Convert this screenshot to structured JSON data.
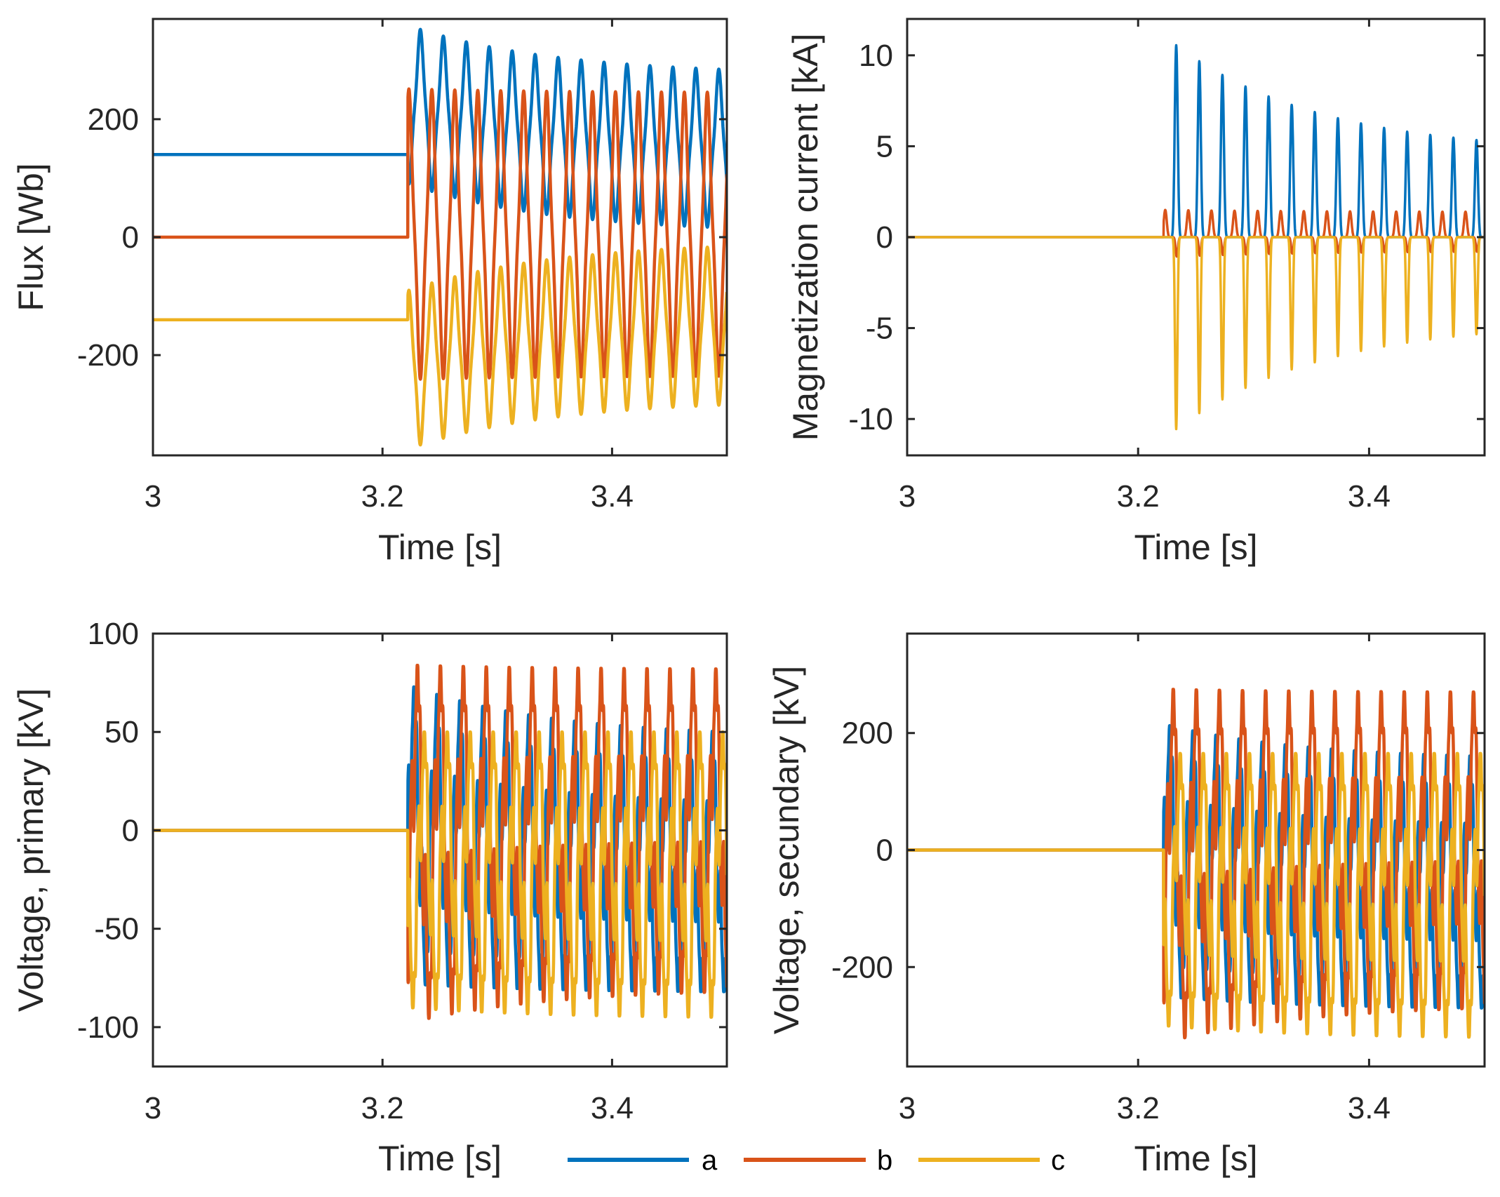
{
  "legend": {
    "placement": "bottom-center",
    "entries": [
      {
        "label": "a",
        "color": "#0072BD"
      },
      {
        "label": "b",
        "color": "#D95319"
      },
      {
        "label": "c",
        "color": "#EDB120"
      }
    ]
  },
  "chart_data": [
    {
      "type": "line",
      "xlabel": "Time [s]",
      "ylabel": "Flux [Wb]",
      "xlim": [
        3,
        3.5
      ],
      "ylim": [
        -370,
        370
      ],
      "xticks": [
        "3",
        "3.2",
        "3.4"
      ],
      "xtick_values": [
        3,
        3.2,
        3.4
      ],
      "yticks": [
        "-200",
        "0",
        "200"
      ],
      "ytick_values": [
        -200,
        0,
        200
      ],
      "grid": false,
      "event_time_s": 3.222,
      "frequency_hz": 50,
      "series": [
        {
          "name": "a",
          "color": "#0072BD",
          "pre_event_value": 140,
          "first_peak_time_s": 3.233,
          "peaks_first_last": [
            345,
            270
          ],
          "troughs_first_last": [
            105,
            30
          ]
        },
        {
          "name": "b",
          "color": "#D95319",
          "pre_event_value": 0,
          "first_peak_time_s": 3.243,
          "peaks_first_last": [
            225,
            220
          ],
          "troughs_first_last": [
            -215,
            -210
          ]
        },
        {
          "name": "c",
          "color": "#EDB120",
          "pre_event_value": -140,
          "first_peak_time_s": 3.243,
          "peaks_first_last": [
            -105,
            -30
          ],
          "troughs_first_last": [
            -345,
            -270
          ]
        }
      ]
    },
    {
      "type": "line",
      "xlabel": "Time [s]",
      "ylabel": "Magnetization current [kA]",
      "xlim": [
        3,
        3.5
      ],
      "ylim": [
        -12,
        12
      ],
      "xticks": [
        "3",
        "3.2",
        "3.4"
      ],
      "xtick_values": [
        3,
        3.2,
        3.4
      ],
      "yticks": [
        "-10",
        "-5",
        "0",
        "5",
        "10"
      ],
      "ytick_values": [
        -10,
        -5,
        0,
        5,
        10
      ],
      "grid": false,
      "event_time_s": 3.222,
      "frequency_hz": 50,
      "series": [
        {
          "name": "a",
          "color": "#0072BD",
          "pre_event_value": 0,
          "first_peak_time_s": 3.233,
          "peaks_first_last": [
            11.1,
            5.3
          ],
          "troughs_first_last": [
            0,
            0
          ]
        },
        {
          "name": "b",
          "color": "#D95319",
          "pre_event_value": 0,
          "first_peak_time_s": 3.2435,
          "peaks_first_last": [
            1.5,
            1.4
          ],
          "troughs_first_last": [
            -1.1,
            -0.8
          ]
        },
        {
          "name": "c",
          "color": "#EDB120",
          "pre_event_value": 0,
          "first_peak_time_s": 3.243,
          "peaks_first_last": [
            0,
            0
          ],
          "troughs_first_last": [
            -11.1,
            -5.3
          ]
        }
      ]
    },
    {
      "type": "line",
      "xlabel": "Time [s]",
      "ylabel": "Voltage, primary [kV]",
      "xlim": [
        3,
        3.5
      ],
      "ylim": [
        -120,
        100
      ],
      "xticks": [
        "3",
        "3.2",
        "3.4"
      ],
      "xtick_values": [
        3,
        3.2,
        3.4
      ],
      "yticks": [
        "-100",
        "-50",
        "0",
        "50",
        "100"
      ],
      "ytick_values": [
        -100,
        -50,
        0,
        50,
        100
      ],
      "grid": false,
      "event_time_s": 3.222,
      "frequency_hz": 50,
      "series": [
        {
          "name": "a",
          "color": "#0072BD",
          "pre_event_value": 0,
          "first_peak_time_s": 3.227,
          "peaks_first_last": [
            74,
            50
          ],
          "troughs_first_last": [
            -78,
            -82
          ]
        },
        {
          "name": "b",
          "color": "#D95319",
          "pre_event_value": 0,
          "first_peak_time_s": 3.23,
          "peaks_first_last": [
            84,
            82
          ],
          "troughs_first_last": [
            -98,
            -82
          ]
        },
        {
          "name": "c",
          "color": "#EDB120",
          "pre_event_value": 0,
          "first_peak_time_s": 3.236,
          "peaks_first_last": [
            50,
            50
          ],
          "troughs_first_last": [
            -90,
            -95
          ]
        }
      ]
    },
    {
      "type": "line",
      "xlabel": "Time [s]",
      "ylabel": "Voltage, secundary [kV]",
      "xlim": [
        3,
        3.5
      ],
      "ylim": [
        -370,
        370
      ],
      "xticks": [
        "3",
        "3.2",
        "3.4"
      ],
      "xtick_values": [
        3,
        3.2,
        3.4
      ],
      "yticks": [
        "-200",
        "0",
        "200"
      ],
      "ytick_values": [
        -200,
        0,
        200
      ],
      "grid": false,
      "event_time_s": 3.222,
      "frequency_hz": 50,
      "series": [
        {
          "name": "a",
          "color": "#0072BD",
          "pre_event_value": 0,
          "first_peak_time_s": 3.227,
          "peaks_first_last": [
            215,
            160
          ],
          "troughs_first_last": [
            -250,
            -270
          ]
        },
        {
          "name": "b",
          "color": "#D95319",
          "pre_event_value": 0,
          "first_peak_time_s": 3.23,
          "peaks_first_last": [
            275,
            270
          ],
          "troughs_first_last": [
            -330,
            -270
          ]
        },
        {
          "name": "c",
          "color": "#EDB120",
          "pre_event_value": 0,
          "first_peak_time_s": 3.236,
          "peaks_first_last": [
            165,
            165
          ],
          "troughs_first_last": [
            -300,
            -320
          ]
        }
      ]
    }
  ]
}
